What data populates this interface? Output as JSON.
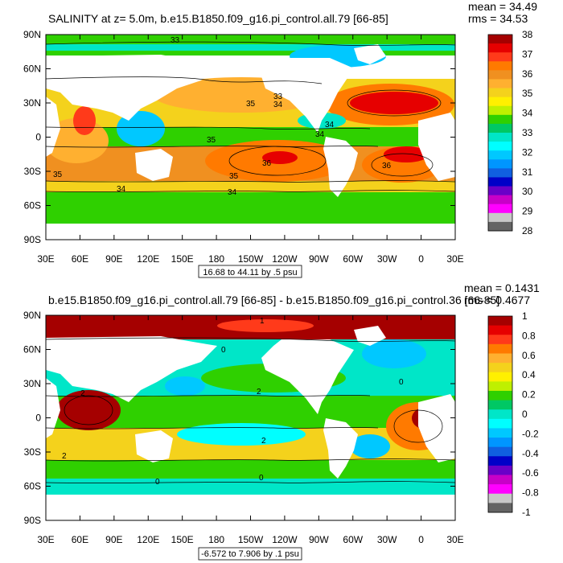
{
  "chart_data": [
    {
      "type": "heatmap",
      "title": "SALINITY at z=   5.0m, b.e15.B1850.f09_g16.pi_control.all.79 [66-85]",
      "stats": {
        "mean": "mean = 34.49",
        "rms": "rms = 34.53"
      },
      "x_ticks": [
        "30E",
        "60E",
        "90E",
        "120E",
        "150E",
        "180",
        "150W",
        "120W",
        "90W",
        "60W",
        "30W",
        "0",
        "30E"
      ],
      "y_ticks": [
        "90N",
        "60N",
        "30N",
        "0",
        "30S",
        "60S",
        "90S"
      ],
      "xlim": [
        30,
        390
      ],
      "ylim": [
        -90,
        90
      ],
      "contour_note": "16.68 to 44.11 by .5 psu",
      "colorbar": {
        "labels": [
          "38",
          "37",
          "36",
          "35",
          "34",
          "33",
          "32",
          "31",
          "30",
          "29",
          "28"
        ],
        "colors": [
          "#a50000",
          "#e60000",
          "#ff3a1a",
          "#ff7a00",
          "#f09020",
          "#ffb030",
          "#f4d21c",
          "#fff000",
          "#bff000",
          "#2fd000",
          "#00c864",
          "#00e6c8",
          "#00ffff",
          "#00c8ff",
          "#0096ff",
          "#1060e0",
          "#0000c8",
          "#6a00c8",
          "#c800c8",
          "#ff00ff",
          "#c8c8c8",
          "#646464"
        ]
      },
      "contour_labels": [
        "33",
        "33",
        "34",
        "35",
        "35",
        "34",
        "34",
        "36",
        "35",
        "35",
        "36",
        "34",
        "34"
      ],
      "series": [
        {
          "name": "surface salinity",
          "units": "psu"
        }
      ]
    },
    {
      "type": "heatmap",
      "title": "b.e15.B1850.f09_g16.pi_control.all.79 [66-85] - b.e15.B1850.f09_g16.pi_control.36 [66-85]",
      "stats": {
        "mean": "mean = 0.1431",
        "rms": "rms = 0.4677"
      },
      "x_ticks": [
        "30E",
        "60E",
        "90E",
        "120E",
        "150E",
        "180",
        "150W",
        "120W",
        "90W",
        "60W",
        "30W",
        "0",
        "30E"
      ],
      "y_ticks": [
        "90N",
        "60N",
        "30N",
        "0",
        "30S",
        "60S",
        "90S"
      ],
      "xlim": [
        30,
        390
      ],
      "ylim": [
        -90,
        90
      ],
      "contour_note": "-6.572 to 7.906 by .1 psu",
      "colorbar": {
        "labels": [
          "1",
          "0.8",
          "0.6",
          "0.4",
          "0.2",
          "0",
          "-0.2",
          "-0.4",
          "-0.6",
          "-0.8",
          "-1"
        ],
        "colors": [
          "#a50000",
          "#e60000",
          "#ff3a1a",
          "#ff7a00",
          "#ffb030",
          "#f4d21c",
          "#fff000",
          "#bff000",
          "#2fd000",
          "#00c864",
          "#00e6c8",
          "#00ffff",
          "#00c8ff",
          "#0096ff",
          "#1060e0",
          "#0000c8",
          "#6a00c8",
          "#c800c8",
          "#ff00ff",
          "#c8c8c8",
          "#646464"
        ]
      },
      "contour_labels": [
        "1",
        "0",
        "2",
        "2",
        "2",
        "0",
        "0",
        "2",
        "0"
      ],
      "series": [
        {
          "name": "salinity difference",
          "units": "psu"
        }
      ]
    }
  ]
}
